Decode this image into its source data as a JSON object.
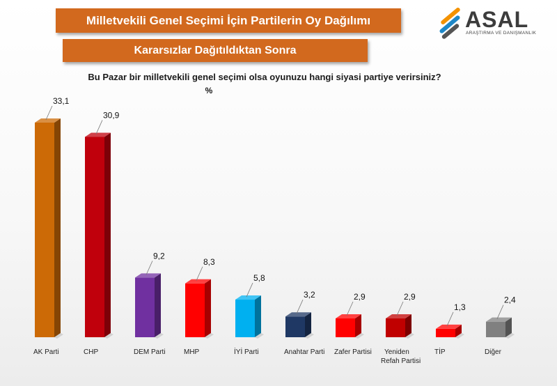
{
  "header": {
    "title": "Milletvekili Genel Seçimi İçin Partilerin Oy Dağılımı",
    "subtitle": "Kararsızlar Dağıtıldıktan Sonra",
    "question": "Bu Pazar bir milletvekili genel seçimi olsa oyunuzu hangi siyasi partiye verirsiniz?",
    "unit": "%"
  },
  "logo": {
    "name": "ASAL",
    "tagline": "ARAŞTIRMA VE DANIŞMANLIK",
    "colors": [
      "#f39200",
      "#1e88c8",
      "#555555"
    ]
  },
  "chart_data": {
    "type": "bar",
    "categories": [
      "AK Parti",
      "CHP",
      "DEM Parti",
      "MHP",
      "İYİ Parti",
      "Anahtar Parti",
      "Zafer Partisi",
      "Yeniden Refah Partisi",
      "TİP",
      "Diğer"
    ],
    "values": [
      33.1,
      30.9,
      9.2,
      8.3,
      5.8,
      3.2,
      2.9,
      2.9,
      1.3,
      2.4
    ],
    "value_labels": [
      "33,1",
      "30,9",
      "9,2",
      "8,3",
      "5,8",
      "3,2",
      "2,9",
      "2,9",
      "1,3",
      "2,4"
    ],
    "colors": [
      "#cc6a06",
      "#c0000c",
      "#7030a0",
      "#ff0000",
      "#00b0f0",
      "#1f3864",
      "#ff0000",
      "#c00000",
      "#ff0000",
      "#808080"
    ],
    "ylim": [
      0,
      35
    ],
    "grid": false,
    "legend": "none"
  }
}
